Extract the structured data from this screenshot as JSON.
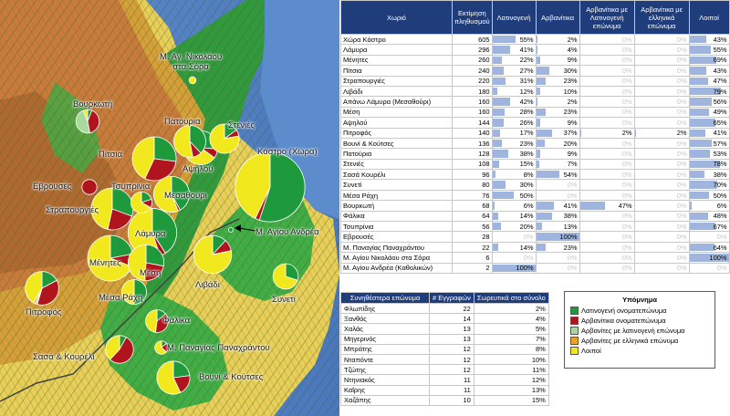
{
  "chart_data": [
    {
      "type": "pie",
      "description": "Map of villages with pie charts of surname origin composition",
      "villages": [
        {
          "name": "Κάστρο (Χώρα)",
          "population": 605,
          "values": [
            55,
            2,
            0,
            0,
            43
          ]
        },
        {
          "name": "Λάμυρα",
          "population": 296,
          "values": [
            41,
            4,
            0,
            0,
            55
          ]
        },
        {
          "name": "Μένητες",
          "population": 260,
          "values": [
            22,
            9,
            0,
            0,
            69
          ]
        },
        {
          "name": "Πίτσια",
          "population": 240,
          "values": [
            27,
            30,
            0,
            0,
            43
          ]
        },
        {
          "name": "Στραπουργιές",
          "population": 220,
          "values": [
            31,
            23,
            0,
            0,
            47
          ]
        },
        {
          "name": "Λιβάδι",
          "population": 180,
          "values": [
            12,
            10,
            0,
            0,
            79
          ]
        },
        {
          "name": "Μεσαθούρι",
          "population": 160,
          "values": [
            42,
            2,
            0,
            0,
            56
          ]
        },
        {
          "name": "Μέση",
          "population": 160,
          "values": [
            28,
            23,
            0,
            0,
            49
          ]
        },
        {
          "name": "Αψηλού",
          "population": 144,
          "values": [
            26,
            9,
            0,
            0,
            65
          ]
        },
        {
          "name": "Πιτροφός",
          "population": 140,
          "values": [
            17,
            37,
            2,
            2,
            41
          ]
        },
        {
          "name": "Βουνί & Κούτσες",
          "population": 136,
          "values": [
            23,
            20,
            0,
            0,
            57
          ]
        },
        {
          "name": "Πατούρια",
          "population": 128,
          "values": [
            38,
            9,
            0,
            0,
            53
          ]
        },
        {
          "name": "Στενιές",
          "population": 108,
          "values": [
            15,
            7,
            0,
            0,
            78
          ]
        },
        {
          "name": "Σασά & Κουρέλι",
          "population": 96,
          "values": [
            8,
            54,
            0,
            0,
            38
          ]
        },
        {
          "name": "Συνετί",
          "population": 80,
          "values": [
            30,
            0,
            0,
            0,
            70
          ]
        },
        {
          "name": "Μέσα Ράχη",
          "population": 76,
          "values": [
            50,
            0,
            0,
            0,
            50
          ]
        },
        {
          "name": "Βουρκωτή",
          "population": 68,
          "values": [
            6,
            41,
            47,
            0,
            6
          ]
        },
        {
          "name": "Φάλικα",
          "population": 64,
          "values": [
            14,
            38,
            0,
            0,
            48
          ]
        },
        {
          "name": "Τσυπρίνια",
          "population": 56,
          "values": [
            20,
            13,
            0,
            0,
            67
          ]
        },
        {
          "name": "Εβρουσές",
          "population": 28,
          "values": [
            0,
            100,
            0,
            0,
            0
          ]
        },
        {
          "name": "Μ. Παναγίας Παναχράντου",
          "population": 22,
          "values": [
            14,
            23,
            0,
            0,
            64
          ]
        },
        {
          "name": "Μ. Αγίου Νικολάου στα Σόρα",
          "population": 6,
          "values": [
            0,
            0,
            0,
            0,
            100
          ]
        },
        {
          "name": "Μ. Αγίου Ανδρέα",
          "population": 2,
          "values": [
            100,
            0,
            0,
            0,
            0
          ]
        }
      ],
      "series_colors": [
        "#1e9a3c",
        "#b0141c",
        "#a8d8a0",
        "#e8a428",
        "#f2e81e"
      ]
    },
    {
      "type": "table",
      "columns": [
        "Χωριό",
        "Εκτίμηση πληθυσμού",
        "Λατινογενή",
        "Αρβανίτικα",
        "Αρβανίτικα με Λατινογενή επώνυμα",
        "Αρβανίτικα με ελληνικά επώνυμα",
        "Λοιποί"
      ],
      "rows": [
        [
          "Χώρα Κάστρο",
          605,
          "55%",
          "2%",
          "0%",
          "0%",
          "43%"
        ],
        [
          "Λάμυρα",
          296,
          "41%",
          "4%",
          "0%",
          "0%",
          "55%"
        ],
        [
          "Μένητες",
          260,
          "22%",
          "9%",
          "0%",
          "0%",
          "69%"
        ],
        [
          "Πίτσια",
          240,
          "27%",
          "30%",
          "0%",
          "0%",
          "43%"
        ],
        [
          "Στραπουργιές",
          220,
          "31%",
          "23%",
          "0%",
          "0%",
          "47%"
        ],
        [
          "Λιβάδι",
          180,
          "12%",
          "10%",
          "0%",
          "0%",
          "79%"
        ],
        [
          "Απάνω Λάμυρα (Μεσαθούρι)",
          160,
          "42%",
          "2%",
          "0%",
          "0%",
          "56%"
        ],
        [
          "Μέση",
          160,
          "28%",
          "23%",
          "0%",
          "0%",
          "49%"
        ],
        [
          "Αψηλού",
          144,
          "26%",
          "9%",
          "0%",
          "0%",
          "65%"
        ],
        [
          "Πιτροφός",
          140,
          "17%",
          "37%",
          "2%",
          "2%",
          "41%"
        ],
        [
          "Βουνί & Κούτσες",
          136,
          "23%",
          "20%",
          "0%",
          "0%",
          "57%"
        ],
        [
          "Πατούρια",
          128,
          "38%",
          "9%",
          "0%",
          "0%",
          "53%"
        ],
        [
          "Στενιές",
          108,
          "15%",
          "7%",
          "0%",
          "0%",
          "78%"
        ],
        [
          "Σασά Κουρέλι",
          96,
          "8%",
          "54%",
          "0%",
          "0%",
          "38%"
        ],
        [
          "Συνετί",
          80,
          "30%",
          "0%",
          "0%",
          "0%",
          "70%"
        ],
        [
          "Μέσα Ράχη",
          76,
          "50%",
          "0%",
          "0%",
          "0%",
          "50%"
        ],
        [
          "Βουρκωτή",
          68,
          "6%",
          "41%",
          "47%",
          "0%",
          "6%"
        ],
        [
          "Φάλικα",
          64,
          "14%",
          "38%",
          "0%",
          "0%",
          "48%"
        ],
        [
          "Τσυπρίνια",
          56,
          "20%",
          "13%",
          "0%",
          "0%",
          "67%"
        ],
        [
          "Εβρουσές",
          28,
          "0%",
          "100%",
          "0%",
          "0%",
          "0%"
        ],
        [
          "Μ. Παναγίας Παναχράντου",
          22,
          "14%",
          "23%",
          "0%",
          "0%",
          "64%"
        ],
        [
          "Μ. Αγίου Νικολάου στα Σόρα",
          6,
          "0%",
          "0%",
          "0%",
          "0%",
          "100%"
        ],
        [
          "Μ. Αγίου Ανδρέα (Καθολικών)",
          2,
          "100%",
          "0%",
          "0%",
          "0%",
          "0%"
        ]
      ]
    },
    {
      "type": "table",
      "columns": [
        "Συνηθέστερα επώνυμα",
        "# Εγγραφών",
        "Σωρευτικά στο σύνολο"
      ],
      "rows": [
        [
          "Φλωπίδης",
          22,
          "2%"
        ],
        [
          "Ξανθός",
          14,
          "4%"
        ],
        [
          "Χαλάς",
          13,
          "5%"
        ],
        [
          "Μηγερινός",
          13,
          "7%"
        ],
        [
          "Μπράτης",
          12,
          "8%"
        ],
        [
          "Νταπόντε",
          12,
          "10%"
        ],
        [
          "Τζώτης",
          12,
          "11%"
        ],
        [
          "Ντηνιακός",
          11,
          "12%"
        ],
        [
          "Καΐρης",
          11,
          "13%"
        ],
        [
          "Χαζάπης",
          10,
          "15%"
        ]
      ]
    }
  ],
  "map_labels": {
    "sora": "Μ. Αγ. Νικολάου\nστα Σόρα",
    "vourkoti": "Βουρκωτή",
    "patouria": "Πατούρια",
    "stenies": "Στενιές",
    "pitsia": "Πίτσια",
    "kastro": "Κάστρο (Χώρα)",
    "aplou": "Αψηλού",
    "evrouses": "Εβρουσές",
    "tsyprinia": "Τσυπρίνια",
    "mesathouri": "Μεσαθούρι",
    "strapourgies": "Στραπουργιές",
    "lamyra": "Λάμυρα",
    "andrea": "Μ. Αγίου Ανδρέα",
    "menites": "Μένητες",
    "mesi": "Μέση",
    "livadi": "Λιβάδι",
    "synetti": "Συνετί",
    "mesa_rachi": "Μέσα Ράχη",
    "pitrofos": "Πιτροφός",
    "falika": "Φάλικα",
    "sasa": "Σασά & Κουρέλι",
    "panagia": "Μ. Παναγίας Παναχράντου",
    "vouni": "Βουνί & Κούτσες"
  },
  "legend": {
    "title": "Υπόμνημα",
    "items": [
      {
        "label": "Λατινογενή ονοματεπώνυμα",
        "color": "#1e9a3c"
      },
      {
        "label": "Αρβανίτικα ονοματεπώνυμα",
        "color": "#b0141c"
      },
      {
        "label": "Αρβανίτες με λατινογενή επώνυμα",
        "color": "#a8d8a0"
      },
      {
        "label": "Αρβανίτες με ελληνικά επώνυμα",
        "color": "#e8a428"
      },
      {
        "label": "Λοιποί",
        "color": "#f2e81e"
      }
    ]
  }
}
